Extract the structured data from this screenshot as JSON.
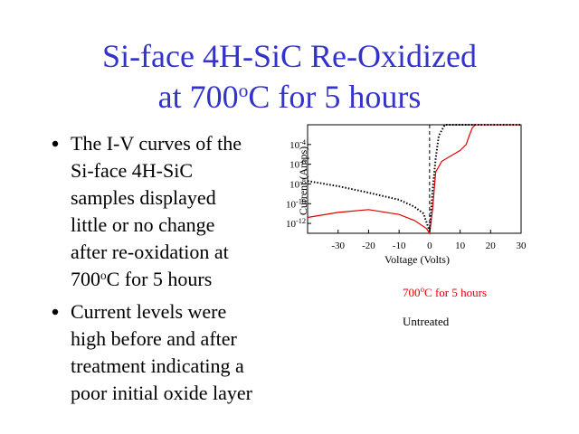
{
  "title": [
    [
      "Si-face 4H-SiC Re-Oxidized"
    ],
    [
      "at 700",
      "o",
      "C for 5 hours"
    ]
  ],
  "bullets": [
    [
      [
        "The I-V curves of the"
      ],
      [
        "Si-face 4H-SiC"
      ],
      [
        "samples displayed"
      ],
      [
        "little or no change"
      ],
      [
        "after re-oxidation at"
      ],
      [
        "700",
        "o",
        "C for 5 hours"
      ]
    ],
    [
      [
        "Current levels were"
      ],
      [
        "high before and after"
      ],
      [
        "treatment indicating a"
      ],
      [
        "poor initial oxide layer"
      ]
    ]
  ],
  "chart_data": {
    "type": "line",
    "x_label": "Voltage (Volts)",
    "y_label": "Current (Amps)",
    "y_scale": "log",
    "xlim": [
      -40,
      30
    ],
    "xticks": [
      -30,
      -20,
      -10,
      0,
      10,
      20,
      30
    ],
    "ylim": [
      1e-13,
      0.01
    ],
    "yticks": [
      {
        "value": 0.0001,
        "label": "10-4"
      },
      {
        "value": 1e-06,
        "label": "10-6"
      },
      {
        "value": 1e-08,
        "label": "10-8"
      },
      {
        "value": 1e-10,
        "label": "10-10"
      },
      {
        "value": 1e-12,
        "label": "10-12"
      }
    ],
    "series": [
      {
        "name": "700oC for 5 hours",
        "color": "#e00000",
        "style": "solid",
        "x": [
          -40,
          -30,
          -20,
          -10,
          -5,
          -1,
          0,
          1,
          2,
          4,
          10,
          12,
          13,
          14,
          15,
          30
        ],
        "values": [
          4e-12,
          1.3e-11,
          2.5e-11,
          8e-12,
          2e-12,
          3e-13,
          1e-13,
          3e-11,
          1.6e-07,
          2e-06,
          2.5e-05,
          0.0001,
          0.0008,
          0.005,
          0.01,
          0.01
        ]
      },
      {
        "name": "Untreated",
        "color": "#000000",
        "style": "dotted",
        "x": [
          -40,
          -30,
          -20,
          -10,
          -5,
          -2,
          0,
          1,
          2,
          3,
          5,
          30
        ],
        "values": [
          2e-08,
          6e-09,
          1.3e-09,
          2.5e-10,
          5e-11,
          1e-11,
          1.6e-13,
          2.5e-09,
          4e-06,
          0.0008,
          0.01,
          0.01
        ]
      }
    ]
  }
}
